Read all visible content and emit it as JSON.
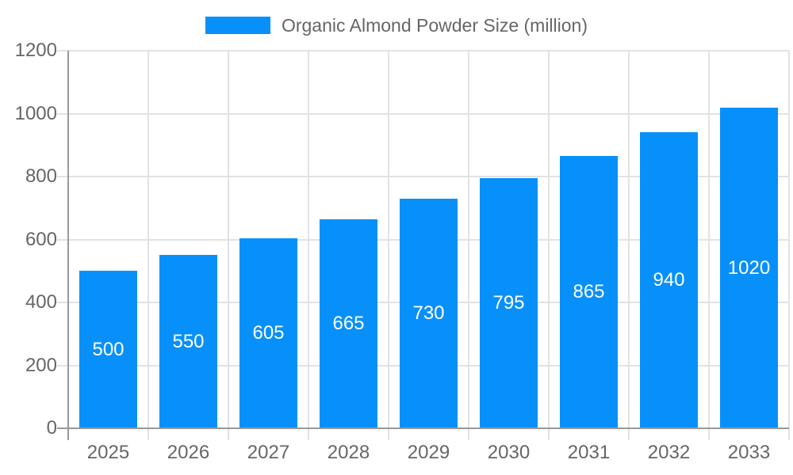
{
  "chart_data": {
    "type": "bar",
    "title": "",
    "legend_position": "top",
    "categories": [
      "2025",
      "2026",
      "2027",
      "2028",
      "2029",
      "2030",
      "2031",
      "2032",
      "2033"
    ],
    "series": [
      {
        "name": "Organic Almond Powder Size (million)",
        "values": [
          500,
          550,
          605,
          665,
          730,
          795,
          865,
          940,
          1020
        ]
      }
    ],
    "value_labels": [
      "500",
      "550",
      "605",
      "665",
      "730",
      "795",
      "865",
      "940",
      "1020"
    ],
    "value_label_position": "inside-center",
    "xlabel": "",
    "ylabel": "",
    "ylim": [
      0,
      1200
    ],
    "yticks": [
      0,
      200,
      400,
      600,
      800,
      1000,
      1200
    ],
    "grid": true,
    "colors": {
      "bar": "#0890fa",
      "bar_label_text": "#ffffff",
      "axis_line": "#999999",
      "gridline": "#e2e2e2",
      "tick_text": "#666666",
      "legend_text": "#666666",
      "background": "#ffffff"
    }
  }
}
